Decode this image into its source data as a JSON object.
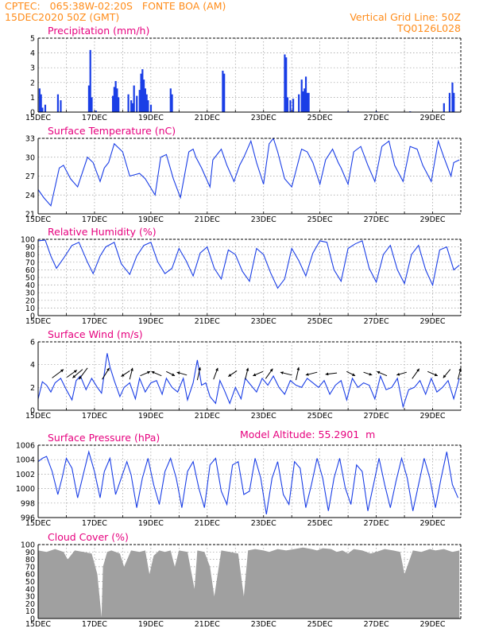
{
  "header": {
    "station_line": "CPTEC:   065:38W-02:20S   FONTE BOA (AM)",
    "date_line": "15DEC2020 50Z (GMT)",
    "grid_note": "Vertical Grid Line: 50Z",
    "code": "TQ0126L028",
    "model_altitude": "Model Altitude: 55.2901  m",
    "color_header": "#ff8c1a",
    "color_title": "#e6007e",
    "color_series": "#1a3ee6",
    "color_cloud": "#a0a0a0"
  },
  "chart_data": [
    {
      "type": "bar",
      "title": "Precipitation  (mm/h)",
      "ylim": [
        0,
        5
      ],
      "yticks": [
        "0",
        "1",
        "2",
        "3",
        "4",
        "5"
      ],
      "xticks": [
        "15DEC",
        "17DEC",
        "19DEC",
        "21DEC",
        "23DEC",
        "25DEC",
        "27DEC",
        "29DEC"
      ],
      "x_start_day": 15,
      "x_end_day": 30,
      "values": [
        [
          15.05,
          1.6
        ],
        [
          15.1,
          1.2
        ],
        [
          15.15,
          0.3
        ],
        [
          15.25,
          0.5
        ],
        [
          15.7,
          1.2
        ],
        [
          15.8,
          0.8
        ],
        [
          16.8,
          1.8
        ],
        [
          16.85,
          4.2
        ],
        [
          16.9,
          1.0
        ],
        [
          17.05,
          0.1
        ],
        [
          17.65,
          1.1
        ],
        [
          17.7,
          1.7
        ],
        [
          17.75,
          2.1
        ],
        [
          17.8,
          1.6
        ],
        [
          17.85,
          1.0
        ],
        [
          18.2,
          1.2
        ],
        [
          18.3,
          0.8
        ],
        [
          18.35,
          0.6
        ],
        [
          18.4,
          1.8
        ],
        [
          18.5,
          1.1
        ],
        [
          18.6,
          1.5
        ],
        [
          18.65,
          2.6
        ],
        [
          18.7,
          2.9
        ],
        [
          18.75,
          2.2
        ],
        [
          18.8,
          1.6
        ],
        [
          18.85,
          1.2
        ],
        [
          18.9,
          0.8
        ],
        [
          19.0,
          0.5
        ],
        [
          19.7,
          1.6
        ],
        [
          19.75,
          1.2
        ],
        [
          21.55,
          2.8
        ],
        [
          21.6,
          2.6
        ],
        [
          23.75,
          3.9
        ],
        [
          23.8,
          3.7
        ],
        [
          23.85,
          1.0
        ],
        [
          23.95,
          0.8
        ],
        [
          24.05,
          0.9
        ],
        [
          24.25,
          1.2
        ],
        [
          24.35,
          2.2
        ],
        [
          24.4,
          1.4
        ],
        [
          24.45,
          1.6
        ],
        [
          24.5,
          2.4
        ],
        [
          24.55,
          1.3
        ],
        [
          24.6,
          1.3
        ],
        [
          26.0,
          0.05
        ],
        [
          27.0,
          0.05
        ],
        [
          28.2,
          0.05
        ],
        [
          29.4,
          0.6
        ],
        [
          29.6,
          1.3
        ],
        [
          29.7,
          2.0
        ],
        [
          29.75,
          1.3
        ]
      ]
    },
    {
      "type": "line",
      "title": "Surface Temperature  (nC)",
      "ylim": [
        19,
        33
      ],
      "yticks": [
        "21",
        "24",
        "27",
        "30",
        "33"
      ],
      "xticks": [
        "15DEC",
        "17DEC",
        "19DEC",
        "21DEC",
        "23DEC",
        "25DEC",
        "27DEC",
        "29DEC"
      ],
      "x_start_day": 15,
      "x_end_day": 30,
      "x": [
        15.0,
        15.2,
        15.45,
        15.6,
        15.75,
        15.9,
        16.15,
        16.4,
        16.75,
        16.95,
        17.2,
        17.35,
        17.5,
        17.7,
        18.0,
        18.25,
        18.6,
        18.8,
        19.15,
        19.35,
        19.55,
        19.8,
        20.05,
        20.35,
        20.5,
        20.6,
        20.8,
        21.1,
        21.2,
        21.5,
        21.7,
        21.95,
        22.15,
        22.3,
        22.55,
        22.75,
        23.0,
        23.2,
        23.35,
        23.5,
        23.75,
        24.0,
        24.35,
        24.55,
        24.75,
        25.0,
        25.2,
        25.45,
        25.65,
        25.75,
        26.0,
        26.2,
        26.45,
        26.7,
        26.95,
        27.2,
        27.45,
        27.65,
        27.95,
        28.2,
        28.45,
        28.65,
        28.95,
        29.2,
        29.4,
        29.65,
        29.75,
        29.95
      ],
      "y": [
        23.5,
        22.0,
        20.5,
        24.0,
        27.5,
        28.0,
        25.5,
        24.0,
        29.5,
        28.5,
        25.0,
        27.5,
        28.5,
        32.0,
        30.5,
        26.0,
        26.5,
        25.5,
        22.5,
        29.5,
        30.0,
        25.5,
        22.0,
        30.5,
        31.0,
        29.5,
        27.5,
        24.0,
        29.0,
        31.0,
        28.0,
        25.0,
        28.0,
        29.5,
        32.5,
        28.5,
        24.5,
        32.0,
        33.0,
        30.5,
        25.5,
        24.0,
        31.0,
        30.5,
        28.5,
        24.5,
        29.0,
        31.0,
        28.5,
        27.5,
        24.5,
        30.5,
        31.5,
        28.0,
        25.0,
        31.5,
        32.5,
        28.0,
        25.0,
        31.5,
        31.0,
        28.0,
        25.0,
        32.5,
        29.5,
        26.0,
        28.5,
        29.0
      ]
    },
    {
      "type": "line",
      "title": "Relative Humidity  (%)",
      "ylim": [
        0,
        100
      ],
      "yticks": [
        "0",
        "10",
        "20",
        "30",
        "40",
        "50",
        "60",
        "70",
        "80",
        "90",
        "100"
      ],
      "xticks": [
        "15DEC",
        "17DEC",
        "19DEC",
        "21DEC",
        "23DEC",
        "25DEC",
        "27DEC",
        "29DEC"
      ],
      "x_start_day": 15,
      "x_end_day": 30,
      "x": [
        15.0,
        15.25,
        15.45,
        15.65,
        15.9,
        16.2,
        16.45,
        16.75,
        16.95,
        17.2,
        17.4,
        17.7,
        17.95,
        18.25,
        18.5,
        18.75,
        19.0,
        19.25,
        19.5,
        19.75,
        20.0,
        20.25,
        20.5,
        20.75,
        21.0,
        21.25,
        21.5,
        21.75,
        22.0,
        22.25,
        22.5,
        22.75,
        23.0,
        23.25,
        23.5,
        23.75,
        24.0,
        24.25,
        24.5,
        24.75,
        25.0,
        25.25,
        25.5,
        25.75,
        26.0,
        26.25,
        26.5,
        26.75,
        27.0,
        27.25,
        27.5,
        27.75,
        28.0,
        28.25,
        28.5,
        28.75,
        29.0,
        29.25,
        29.5,
        29.75,
        29.95
      ],
      "y": [
        98,
        99,
        78,
        62,
        75,
        92,
        96,
        70,
        55,
        78,
        90,
        96,
        68,
        54,
        78,
        92,
        96,
        70,
        55,
        62,
        88,
        72,
        52,
        82,
        90,
        62,
        48,
        86,
        80,
        58,
        45,
        88,
        80,
        56,
        36,
        48,
        88,
        72,
        52,
        82,
        98,
        96,
        60,
        45,
        88,
        94,
        98,
        62,
        44,
        80,
        92,
        60,
        42,
        80,
        92,
        60,
        40,
        86,
        90,
        60,
        66
      ]
    },
    {
      "type": "line",
      "title": "Surface Wind  (m/s)",
      "ylim": [
        0,
        6
      ],
      "yticks": [
        "0",
        "2",
        "4",
        "6"
      ],
      "xticks": [
        "15DEC",
        "17DEC",
        "19DEC",
        "21DEC",
        "23DEC",
        "25DEC",
        "27DEC",
        "29DEC"
      ],
      "x_start_day": 15,
      "x_end_day": 30,
      "x": [
        15.0,
        15.15,
        15.3,
        15.45,
        15.6,
        15.8,
        16.0,
        16.2,
        16.35,
        16.5,
        16.7,
        16.9,
        17.1,
        17.25,
        17.45,
        17.55,
        17.7,
        17.9,
        18.05,
        18.25,
        18.45,
        18.6,
        18.8,
        19.0,
        19.2,
        19.4,
        19.55,
        19.75,
        19.95,
        20.15,
        20.3,
        20.5,
        20.65,
        20.8,
        20.95,
        21.1,
        21.3,
        21.45,
        21.6,
        21.8,
        22.0,
        22.2,
        22.35,
        22.55,
        22.75,
        22.95,
        23.15,
        23.35,
        23.55,
        23.75,
        23.95,
        24.15,
        24.35,
        24.55,
        24.75,
        24.95,
        25.15,
        25.35,
        25.55,
        25.75,
        25.95,
        26.15,
        26.35,
        26.55,
        26.75,
        26.95,
        27.15,
        27.35,
        27.55,
        27.75,
        27.95,
        28.15,
        28.35,
        28.55,
        28.75,
        28.95,
        29.15,
        29.35,
        29.55,
        29.75,
        29.95
      ],
      "y": [
        1.0,
        2.5,
        2.2,
        1.6,
        2.4,
        2.8,
        1.8,
        0.9,
        2.6,
        3.0,
        1.8,
        2.8,
        2.0,
        1.5,
        5.0,
        3.8,
        2.6,
        1.2,
        2.0,
        2.4,
        1.0,
        2.8,
        1.6,
        2.4,
        2.6,
        1.4,
        2.8,
        2.0,
        1.6,
        2.8,
        0.9,
        2.4,
        4.4,
        2.2,
        2.4,
        1.2,
        0.6,
        2.6,
        1.8,
        0.6,
        2.0,
        1.0,
        2.8,
        2.2,
        1.6,
        2.8,
        2.2,
        3.0,
        2.0,
        1.4,
        2.6,
        2.2,
        2.0,
        2.8,
        2.4,
        2.0,
        2.6,
        1.4,
        2.2,
        2.6,
        0.9,
        2.8,
        2.0,
        2.4,
        2.2,
        1.0,
        3.0,
        1.8,
        2.0,
        2.8,
        0.3,
        1.8,
        2.0,
        2.6,
        1.4,
        2.8,
        1.6,
        2.0,
        2.6,
        1.0,
        2.8
      ]
    },
    {
      "type": "line",
      "title": "Surface Pressure  (hPa)",
      "ylim": [
        996,
        1007
      ],
      "yticks": [
        "996",
        "998",
        "1000",
        "1002",
        "1004",
        "1006"
      ],
      "xticks": [
        "15DEC",
        "17DEC",
        "19DEC",
        "21DEC",
        "23DEC",
        "25DEC",
        "27DEC",
        "29DEC"
      ],
      "x_start_day": 15,
      "x_end_day": 30,
      "x": [
        15.0,
        15.15,
        15.3,
        15.5,
        15.7,
        15.85,
        16.0,
        16.2,
        16.4,
        16.6,
        16.8,
        17.0,
        17.2,
        17.35,
        17.55,
        17.75,
        17.95,
        18.15,
        18.3,
        18.5,
        18.7,
        18.9,
        19.1,
        19.3,
        19.5,
        19.7,
        19.9,
        20.1,
        20.3,
        20.5,
        20.7,
        20.9,
        21.1,
        21.3,
        21.5,
        21.7,
        21.9,
        22.1,
        22.3,
        22.5,
        22.7,
        22.9,
        23.1,
        23.3,
        23.5,
        23.7,
        23.9,
        24.1,
        24.3,
        24.5,
        24.7,
        24.9,
        25.1,
        25.3,
        25.5,
        25.7,
        25.9,
        26.1,
        26.3,
        26.5,
        26.7,
        26.9,
        27.1,
        27.3,
        27.5,
        27.7,
        27.9,
        28.1,
        28.3,
        28.5,
        28.7,
        28.9,
        29.1,
        29.3,
        29.5,
        29.7,
        29.9
      ],
      "y": [
        1004.5,
        1005.0,
        1005.3,
        1003.0,
        999.5,
        1002.0,
        1005.0,
        1003.5,
        999.0,
        1002.5,
        1006.0,
        1003.0,
        999.0,
        1003.0,
        1005.0,
        999.5,
        1002.0,
        1004.5,
        1002.5,
        997.5,
        1002.0,
        1005.0,
        1001.0,
        998.0,
        1003.0,
        1005.0,
        1002.0,
        997.5,
        1003.0,
        1004.5,
        1000.5,
        997.5,
        1004.0,
        1005.0,
        1000.0,
        998.0,
        1004.0,
        1004.5,
        999.5,
        1000.0,
        1005.0,
        1002.0,
        996.5,
        1002.0,
        1004.5,
        999.5,
        998.0,
        1004.5,
        1003.5,
        997.5,
        1001.0,
        1005.0,
        1002.0,
        997.0,
        1002.0,
        1005.0,
        1000.5,
        998.0,
        1004.0,
        1003.0,
        997.0,
        1001.0,
        1005.0,
        1001.0,
        997.5,
        1001.5,
        1005.0,
        1002.0,
        997.0,
        1001.0,
        1005.0,
        1002.0,
        997.5,
        1002.0,
        1006.0,
        1001.0,
        999.0
      ]
    },
    {
      "type": "area",
      "title": "Cloud Cover  (%)",
      "ylim": [
        0,
        100
      ],
      "yticks": [
        "0",
        "10",
        "20",
        "30",
        "40",
        "50",
        "60",
        "70",
        "80",
        "90",
        "100"
      ],
      "xticks": [
        "15DEC",
        "17DEC",
        "19DEC",
        "21DEC",
        "23DEC",
        "25DEC",
        "27DEC",
        "29DEC"
      ],
      "x_start_day": 15,
      "x_end_day": 30,
      "x": [
        15.0,
        15.3,
        15.6,
        15.9,
        16.05,
        16.3,
        16.6,
        16.9,
        17.1,
        17.25,
        17.3,
        17.45,
        17.6,
        17.9,
        18.05,
        18.3,
        18.6,
        18.8,
        18.95,
        19.1,
        19.3,
        19.5,
        19.7,
        19.85,
        20.0,
        20.3,
        20.55,
        20.65,
        20.9,
        21.1,
        21.25,
        21.5,
        21.8,
        22.1,
        22.3,
        22.45,
        22.7,
        23.0,
        23.2,
        23.5,
        23.8,
        24.1,
        24.4,
        24.7,
        24.9,
        25.1,
        25.4,
        25.6,
        25.8,
        26.0,
        26.2,
        26.5,
        26.8,
        27.0,
        27.3,
        27.6,
        27.85,
        28.0,
        28.3,
        28.6,
        28.9,
        29.1,
        29.4,
        29.7,
        29.95
      ],
      "y": [
        92,
        90,
        94,
        90,
        80,
        92,
        90,
        88,
        60,
        2,
        70,
        90,
        92,
        88,
        70,
        92,
        90,
        92,
        60,
        85,
        92,
        90,
        92,
        70,
        92,
        90,
        40,
        92,
        90,
        70,
        30,
        92,
        90,
        88,
        30,
        92,
        94,
        92,
        90,
        94,
        92,
        94,
        96,
        94,
        92,
        95,
        94,
        90,
        92,
        88,
        94,
        92,
        88,
        90,
        94,
        92,
        90,
        60,
        92,
        90,
        94,
        92,
        94,
        90,
        92
      ]
    }
  ]
}
